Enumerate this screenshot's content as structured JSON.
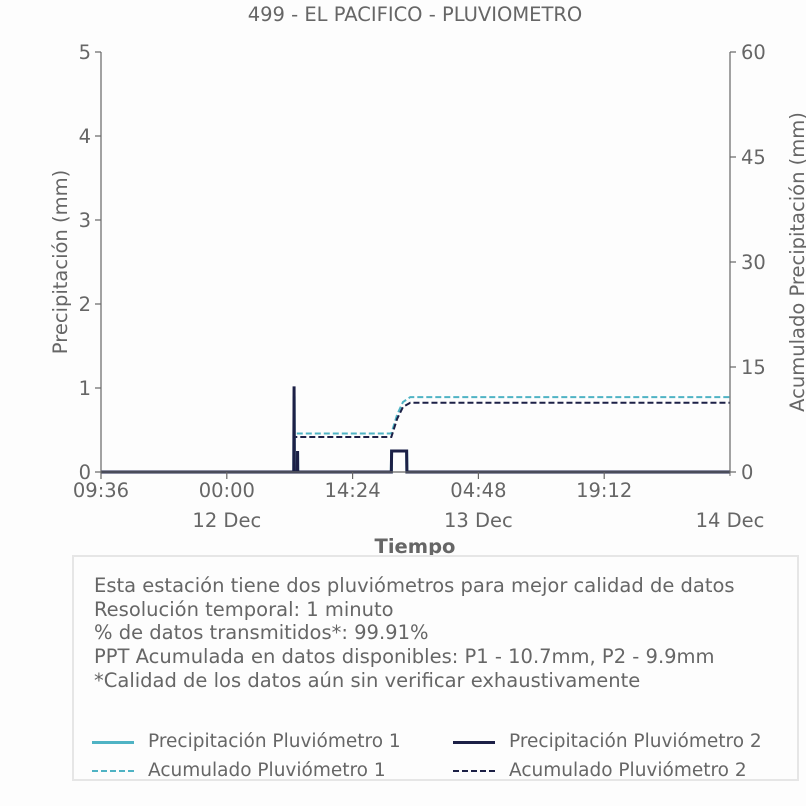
{
  "title": "499 - EL PACIFICO - PLUVIOMETRO",
  "colors": {
    "p1": "#4fb3c4",
    "p2": "#1c2046",
    "text": "#666666",
    "axis": "#666666"
  },
  "info": {
    "line1": "Esta estación tiene dos pluviómetros para mejor calidad de datos",
    "line2": "Resolución temporal: 1 minuto",
    "line3": "% de datos transmitidos*: 99.91%",
    "line4": "PPT Acumulada en datos disponibles: P1 - 10.7mm, P2 - 9.9mm",
    "line5": "*Calidad de los datos aún sin verificar exhaustivamente"
  },
  "legend": {
    "p1_precip": "Precipitación Pluviómetro 1",
    "p2_precip": "Precipitación Pluviómetro 2",
    "p1_acum": "Acumulado Pluviómetro 1",
    "p2_acum": "Acumulado Pluviómetro 2"
  },
  "chart_data": {
    "type": "line",
    "title": "499 - EL PACIFICO - PLUVIOMETRO",
    "xlabel": "Tiempo",
    "ylabel": "Precipitación (mm)",
    "y2label": "Acumulado Precipitación (mm)",
    "x_range": [
      "2023-12-11 09:36",
      "2023-12-14 09:36"
    ],
    "ylim": [
      0,
      5
    ],
    "y2lim": [
      0,
      60
    ],
    "yticks": [
      "0",
      "1",
      "2",
      "3",
      "4",
      "5"
    ],
    "y2ticks": [
      "0",
      "15",
      "30",
      "45",
      "60"
    ],
    "xticks": [
      {
        "time": "2023-12-11 09:36",
        "label": "09:36",
        "date": ""
      },
      {
        "time": "2023-12-12 00:00",
        "label": "00:00",
        "date": "12 Dec"
      },
      {
        "time": "2023-12-12 14:24",
        "label": "14:24",
        "date": ""
      },
      {
        "time": "2023-12-13 04:48",
        "label": "04:48",
        "date": "13 Dec"
      },
      {
        "time": "2023-12-13 19:12",
        "label": "19:12",
        "date": ""
      },
      {
        "time": "2023-12-14 09:36",
        "label": "",
        "date": "14 Dec"
      }
    ],
    "series": [
      {
        "name": "Precipitación Pluviómetro 1",
        "axis": "left",
        "style": "solid",
        "points": [
          [
            "2023-12-11 09:36",
            0
          ],
          [
            "2023-12-12 07:40",
            0
          ],
          [
            "2023-12-12 07:42",
            0.9
          ],
          [
            "2023-12-12 07:44",
            0
          ],
          [
            "2023-12-12 08:05",
            0
          ],
          [
            "2023-12-12 08:06",
            0.25
          ],
          [
            "2023-12-12 08:07",
            0
          ],
          [
            "2023-12-12 18:50",
            0
          ],
          [
            "2023-12-12 18:52",
            0.25
          ],
          [
            "2023-12-12 19:05",
            0.25
          ],
          [
            "2023-12-12 19:20",
            0.25
          ],
          [
            "2023-12-12 19:40",
            0.25
          ],
          [
            "2023-12-12 20:00",
            0.25
          ],
          [
            "2023-12-12 20:20",
            0.25
          ],
          [
            "2023-12-12 20:35",
            0.25
          ],
          [
            "2023-12-12 20:37",
            0
          ],
          [
            "2023-12-14 09:36",
            0
          ]
        ]
      },
      {
        "name": "Precipitación Pluviómetro 2",
        "axis": "left",
        "style": "solid",
        "points": [
          [
            "2023-12-11 09:36",
            0
          ],
          [
            "2023-12-12 07:40",
            0
          ],
          [
            "2023-12-12 07:42",
            1.02
          ],
          [
            "2023-12-12 07:44",
            0
          ],
          [
            "2023-12-12 08:05",
            0
          ],
          [
            "2023-12-12 08:06",
            0.25
          ],
          [
            "2023-12-12 08:07",
            0
          ],
          [
            "2023-12-12 18:50",
            0
          ],
          [
            "2023-12-12 18:52",
            0.25
          ],
          [
            "2023-12-12 19:05",
            0.25
          ],
          [
            "2023-12-12 19:20",
            0.25
          ],
          [
            "2023-12-12 19:40",
            0.25
          ],
          [
            "2023-12-12 20:00",
            0.25
          ],
          [
            "2023-12-12 20:20",
            0.25
          ],
          [
            "2023-12-12 20:35",
            0.25
          ],
          [
            "2023-12-12 20:37",
            0
          ],
          [
            "2023-12-14 09:36",
            0
          ]
        ]
      },
      {
        "name": "Acumulado Pluviómetro 1",
        "axis": "right",
        "style": "dashed",
        "points": [
          [
            "2023-12-11 09:36",
            0
          ],
          [
            "2023-12-12 07:40",
            0
          ],
          [
            "2023-12-12 07:42",
            5.5
          ],
          [
            "2023-12-12 18:50",
            5.5
          ],
          [
            "2023-12-12 19:30",
            8.2
          ],
          [
            "2023-12-12 20:10",
            10.0
          ],
          [
            "2023-12-12 21:00",
            10.7
          ],
          [
            "2023-12-14 09:36",
            10.7
          ]
        ]
      },
      {
        "name": "Acumulado Pluviómetro 2",
        "axis": "right",
        "style": "dashed",
        "points": [
          [
            "2023-12-11 09:36",
            0
          ],
          [
            "2023-12-12 07:40",
            0
          ],
          [
            "2023-12-12 07:42",
            5.0
          ],
          [
            "2023-12-12 18:50",
            5.0
          ],
          [
            "2023-12-12 19:30",
            7.6
          ],
          [
            "2023-12-12 20:10",
            9.3
          ],
          [
            "2023-12-12 21:00",
            9.9
          ],
          [
            "2023-12-14 09:36",
            9.9
          ]
        ]
      }
    ],
    "grid": false,
    "legend_position": "bottom"
  }
}
